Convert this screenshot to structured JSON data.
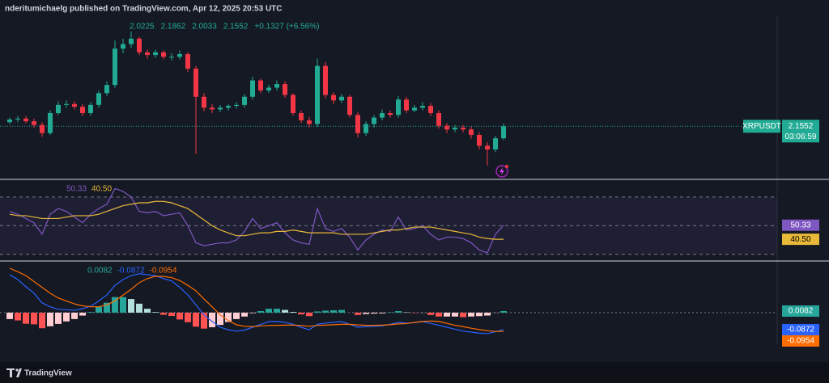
{
  "header": {
    "publisher": "nderitumichaelg published on TradingView.com, Apr 12, 2025 20:53 UTC"
  },
  "footer": {
    "brand": "TradingView"
  },
  "chart_data": [
    {
      "type": "candlestick",
      "symbol": "XRPUSDT",
      "countdown": "03:06:59",
      "change": "+0.1327 (+6.56%)",
      "colors": {
        "up": "#22ab94",
        "down": "#f23645"
      },
      "ylim": [
        1.57,
        3.35
      ],
      "open": [
        2.2,
        2.23,
        2.24,
        2.21,
        2.17,
        2.08,
        2.3,
        2.39,
        2.4,
        2.37,
        2.3,
        2.39,
        2.52,
        2.61,
        3.01,
        3.06,
        3.12,
        2.97,
        2.94,
        2.97,
        2.92,
        2.92,
        2.95,
        2.79,
        2.48,
        2.36,
        2.34,
        2.36,
        2.38,
        2.39,
        2.48,
        2.66,
        2.55,
        2.58,
        2.62,
        2.5,
        2.3,
        2.22,
        2.18,
        2.82,
        2.5,
        2.44,
        2.48,
        2.28,
        2.08,
        2.18,
        2.25,
        2.3,
        2.28,
        2.45,
        2.33,
        2.36,
        2.38,
        2.3,
        2.16,
        2.12,
        2.14,
        2.12,
        2.06,
        1.94,
        1.9,
        2.0225
      ],
      "high": [
        2.25,
        2.27,
        2.27,
        2.24,
        2.2,
        2.33,
        2.43,
        2.44,
        2.43,
        2.4,
        2.42,
        2.55,
        2.65,
        3.1,
        3.12,
        3.2,
        3.14,
        3.0,
        3.0,
        2.99,
        2.96,
        2.99,
        2.97,
        2.82,
        2.52,
        2.4,
        2.39,
        2.4,
        2.42,
        2.51,
        2.7,
        2.68,
        2.61,
        2.66,
        2.65,
        2.52,
        2.33,
        2.26,
        2.9,
        2.86,
        2.53,
        2.51,
        2.5,
        2.31,
        2.21,
        2.28,
        2.34,
        2.33,
        2.49,
        2.48,
        2.39,
        2.42,
        2.41,
        2.33,
        2.19,
        2.17,
        2.17,
        2.15,
        2.09,
        1.98,
        2.05,
        2.1862
      ],
      "low": [
        2.18,
        2.2,
        2.19,
        2.14,
        2.04,
        2.06,
        2.28,
        2.36,
        2.34,
        2.27,
        2.27,
        2.36,
        2.49,
        2.58,
        2.96,
        3.02,
        2.94,
        2.9,
        2.91,
        2.89,
        2.88,
        2.89,
        2.75,
        1.85,
        2.32,
        2.3,
        2.31,
        2.33,
        2.35,
        2.36,
        2.45,
        2.52,
        2.52,
        2.55,
        2.47,
        2.27,
        2.19,
        2.14,
        2.15,
        2.46,
        2.4,
        2.41,
        2.25,
        2.03,
        2.05,
        2.14,
        2.22,
        2.25,
        2.25,
        2.3,
        2.31,
        2.33,
        2.27,
        2.13,
        2.08,
        2.09,
        2.09,
        2.02,
        1.9,
        1.72,
        1.87,
        2.0033
      ],
      "close": [
        2.23,
        2.24,
        2.21,
        2.17,
        2.08,
        2.3,
        2.39,
        2.4,
        2.37,
        2.3,
        2.39,
        2.52,
        2.61,
        3.01,
        3.06,
        3.12,
        2.97,
        2.94,
        2.97,
        2.92,
        2.92,
        2.95,
        2.79,
        2.48,
        2.36,
        2.34,
        2.36,
        2.38,
        2.39,
        2.48,
        2.66,
        2.55,
        2.58,
        2.62,
        2.5,
        2.3,
        2.22,
        2.18,
        2.82,
        2.5,
        2.44,
        2.48,
        2.28,
        2.08,
        2.18,
        2.25,
        2.3,
        2.28,
        2.45,
        2.33,
        2.36,
        2.38,
        2.3,
        2.16,
        2.12,
        2.14,
        2.12,
        2.06,
        1.94,
        1.9,
        2.0225,
        2.1552
      ]
    },
    {
      "type": "line",
      "ylim": [
        27,
        79
      ],
      "bands": [
        70,
        50,
        30
      ],
      "band_color": "#7e57c2",
      "series": [
        {
          "color": "#7e57c2",
          "values": [
            60,
            58,
            55,
            52,
            44,
            58,
            62,
            60,
            56,
            52,
            58,
            62,
            65,
            76,
            74,
            70,
            60,
            59,
            60,
            57,
            58,
            59,
            50,
            38,
            36,
            37,
            38,
            38,
            40,
            46,
            55,
            48,
            50,
            52,
            45,
            40,
            38,
            37,
            62,
            48,
            46,
            48,
            42,
            33,
            40,
            44,
            47,
            46,
            56,
            47,
            48,
            50,
            44,
            40,
            42,
            42,
            41,
            38,
            33,
            31,
            44,
            50.33
          ]
        },
        {
          "color": "#e8b839",
          "values": [
            58,
            57,
            57,
            56,
            55,
            55,
            55,
            56,
            57,
            57,
            57,
            58,
            60,
            62,
            64,
            65,
            66,
            66,
            67,
            67,
            66,
            64,
            62,
            58,
            54,
            50,
            47,
            45,
            43,
            43,
            44,
            45,
            45,
            46,
            46,
            47,
            46,
            45,
            45,
            45,
            45,
            44,
            44,
            44,
            44,
            45,
            46,
            47,
            47,
            48,
            49,
            49,
            49,
            48,
            47,
            46,
            45,
            44,
            42,
            41,
            40.5,
            40.5
          ],
          "value_labels": [
            null,
            null,
            null,
            null,
            null,
            null,
            null,
            null,
            null,
            null,
            null,
            null,
            null,
            null,
            null,
            null,
            null,
            null,
            null,
            null,
            null,
            null,
            null,
            null,
            null,
            null,
            null,
            null,
            null,
            null,
            null,
            null,
            null,
            null,
            null,
            null,
            null,
            null,
            null,
            null,
            null,
            null,
            null,
            null,
            null,
            null,
            null,
            null,
            null,
            null,
            null,
            null,
            null,
            null,
            null,
            null,
            null,
            null,
            null,
            null,
            null,
            "40.50"
          ]
        }
      ]
    },
    {
      "type": "macd",
      "ylim": [
        -0.158,
        0.257
      ],
      "histogram": {
        "colors": {
          "up_strong": "#26a69a",
          "up_weak": "#b2dfdb",
          "down_weak": "#ffcdd2",
          "down_strong": "#ff5252"
        },
        "values": [
          -0.033,
          -0.04,
          -0.057,
          -0.06,
          -0.08,
          -0.07,
          -0.058,
          -0.045,
          -0.033,
          -0.015,
          0.003,
          0.03,
          0.051,
          0.08,
          0.08,
          0.07,
          0.046,
          0.02,
          0.003,
          -0.011,
          -0.017,
          -0.035,
          -0.049,
          -0.072,
          -0.082,
          -0.075,
          -0.063,
          -0.048,
          -0.033,
          -0.02,
          -0.003,
          0.008,
          0.02,
          0.02,
          0.014,
          0.004,
          -0.009,
          -0.018,
          0.006,
          0.01,
          0.012,
          0.014,
          0,
          -0.012,
          -0.007,
          -0.005,
          -0.004,
          0.002,
          0.008,
          0.002,
          -0.002,
          -0.001,
          -0.012,
          -0.02,
          -0.02,
          -0.02,
          -0.023,
          -0.02,
          -0.018,
          -0.015,
          -0.001,
          0.0082
        ]
      },
      "series": [
        {
          "color": "#2962ff",
          "values": [
            0.195,
            0.17,
            0.133,
            0.1,
            0.05,
            0.03,
            0.017,
            0.015,
            0.012,
            0.02,
            0.033,
            0.06,
            0.091,
            0.14,
            0.17,
            0.19,
            0.2,
            0.195,
            0.19,
            0.175,
            0.163,
            0.13,
            0.091,
            0.04,
            -0.012,
            -0.045,
            -0.075,
            -0.088,
            -0.095,
            -0.09,
            -0.075,
            -0.06,
            -0.046,
            -0.045,
            -0.05,
            -0.06,
            -0.075,
            -0.088,
            -0.06,
            -0.054,
            -0.05,
            -0.046,
            -0.06,
            -0.075,
            -0.072,
            -0.07,
            -0.068,
            -0.06,
            -0.05,
            -0.054,
            -0.052,
            -0.046,
            -0.055,
            -0.065,
            -0.075,
            -0.085,
            -0.095,
            -0.1,
            -0.105,
            -0.108,
            -0.098,
            -0.0872
          ]
        },
        {
          "color": "#ff6d00",
          "values": [
            0.228,
            0.21,
            0.19,
            0.16,
            0.13,
            0.1,
            0.075,
            0.06,
            0.045,
            0.035,
            0.03,
            0.03,
            0.04,
            0.06,
            0.09,
            0.12,
            0.154,
            0.175,
            0.187,
            0.186,
            0.18,
            0.165,
            0.14,
            0.112,
            0.07,
            0.03,
            -0.012,
            -0.04,
            -0.062,
            -0.07,
            -0.072,
            -0.068,
            -0.066,
            -0.065,
            -0.064,
            -0.064,
            -0.066,
            -0.07,
            -0.066,
            -0.064,
            -0.062,
            -0.06,
            -0.06,
            -0.063,
            -0.065,
            -0.065,
            -0.064,
            -0.062,
            -0.058,
            -0.056,
            -0.05,
            -0.045,
            -0.043,
            -0.045,
            -0.055,
            -0.065,
            -0.072,
            -0.08,
            -0.087,
            -0.093,
            -0.097,
            -0.0954
          ]
        }
      ]
    }
  ]
}
